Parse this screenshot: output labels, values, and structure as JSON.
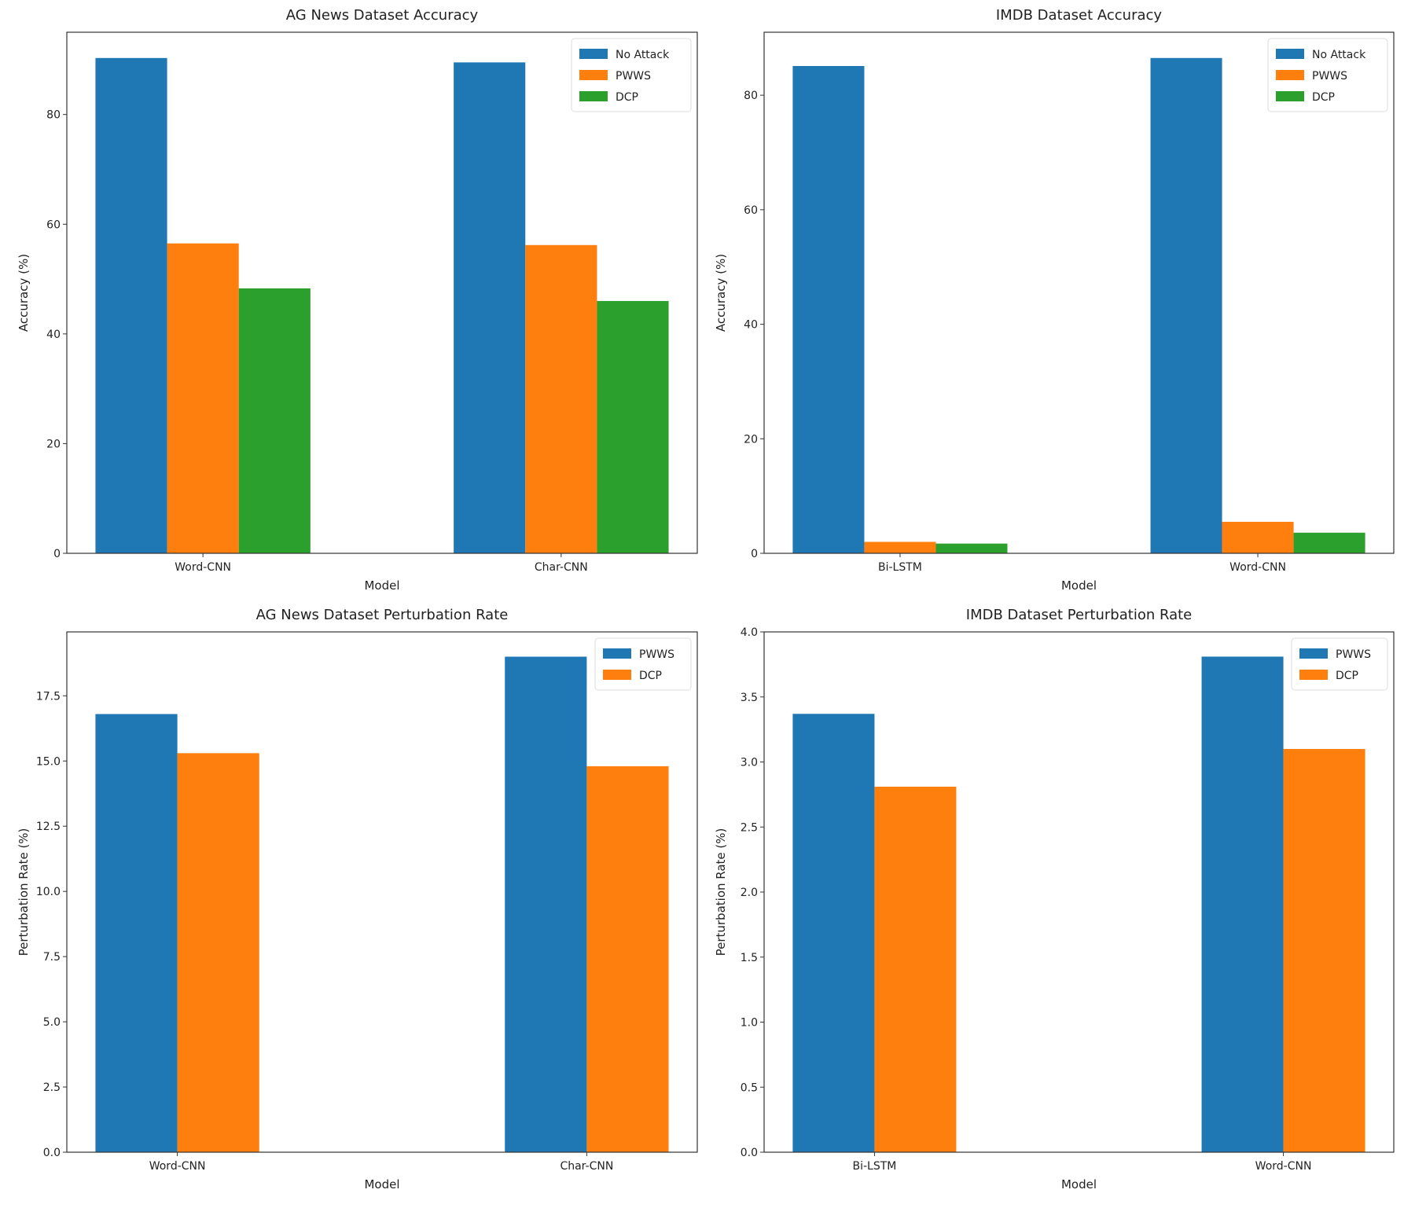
{
  "chart_data": [
    {
      "type": "bar",
      "title": "AG News Dataset Accuracy",
      "xlabel": "Model",
      "ylabel": "Accuracy (%)",
      "categories": [
        "Word-CNN",
        "Char-CNN"
      ],
      "series": [
        {
          "name": "No Attack",
          "color": "#1f77b4",
          "values": [
            90.3,
            89.5
          ]
        },
        {
          "name": "PWWS",
          "color": "#ff7f0e",
          "values": [
            56.5,
            56.2
          ]
        },
        {
          "name": "DCP",
          "color": "#2ca02c",
          "values": [
            48.3,
            46.0
          ]
        }
      ],
      "ylim": [
        0,
        95
      ],
      "yticks": [
        0,
        20,
        40,
        60,
        80
      ],
      "ytick_labels": [
        "0",
        "20",
        "40",
        "60",
        "80"
      ],
      "legend": "top-right",
      "grid": false
    },
    {
      "type": "bar",
      "title": "IMDB Dataset Accuracy",
      "xlabel": "Model",
      "ylabel": "Accuracy (%)",
      "categories": [
        "Bi-LSTM",
        "Word-CNN"
      ],
      "series": [
        {
          "name": "No Attack",
          "color": "#1f77b4",
          "values": [
            85.1,
            86.5
          ]
        },
        {
          "name": "PWWS",
          "color": "#ff7f0e",
          "values": [
            2.0,
            5.5
          ]
        },
        {
          "name": "DCP",
          "color": "#2ca02c",
          "values": [
            1.7,
            3.6
          ]
        }
      ],
      "ylim": [
        0,
        91
      ],
      "yticks": [
        0,
        20,
        40,
        60,
        80
      ],
      "ytick_labels": [
        "0",
        "20",
        "40",
        "60",
        "80"
      ],
      "legend": "top-right",
      "grid": false
    },
    {
      "type": "bar",
      "title": "AG News Dataset Perturbation Rate",
      "xlabel": "Model",
      "ylabel": "Perturbation Rate (%)",
      "categories": [
        "Word-CNN",
        "Char-CNN"
      ],
      "series": [
        {
          "name": "PWWS",
          "color": "#1f77b4",
          "values": [
            16.8,
            19.0
          ]
        },
        {
          "name": "DCP",
          "color": "#ff7f0e",
          "values": [
            15.3,
            14.8
          ]
        }
      ],
      "ylim": [
        0,
        19.95
      ],
      "yticks": [
        0,
        2.5,
        5,
        7.5,
        10,
        12.5,
        15,
        17.5
      ],
      "ytick_labels": [
        "0.0",
        "2.5",
        "5.0",
        "7.5",
        "10.0",
        "12.5",
        "15.0",
        "17.5"
      ],
      "legend": "top-right",
      "grid": false
    },
    {
      "type": "bar",
      "title": "IMDB Dataset Perturbation Rate",
      "xlabel": "Model",
      "ylabel": "Perturbation Rate (%)",
      "categories": [
        "Bi-LSTM",
        "Word-CNN"
      ],
      "series": [
        {
          "name": "PWWS",
          "color": "#1f77b4",
          "values": [
            3.37,
            3.81
          ]
        },
        {
          "name": "DCP",
          "color": "#ff7f0e",
          "values": [
            2.81,
            3.1
          ]
        }
      ],
      "ylim": [
        0,
        4.0
      ],
      "yticks": [
        0,
        0.5,
        1,
        1.5,
        2,
        2.5,
        3,
        3.5,
        4
      ],
      "ytick_labels": [
        "0.0",
        "0.5",
        "1.0",
        "1.5",
        "2.0",
        "2.5",
        "3.0",
        "3.5",
        "4.0"
      ],
      "legend": "top-right",
      "grid": false
    }
  ]
}
